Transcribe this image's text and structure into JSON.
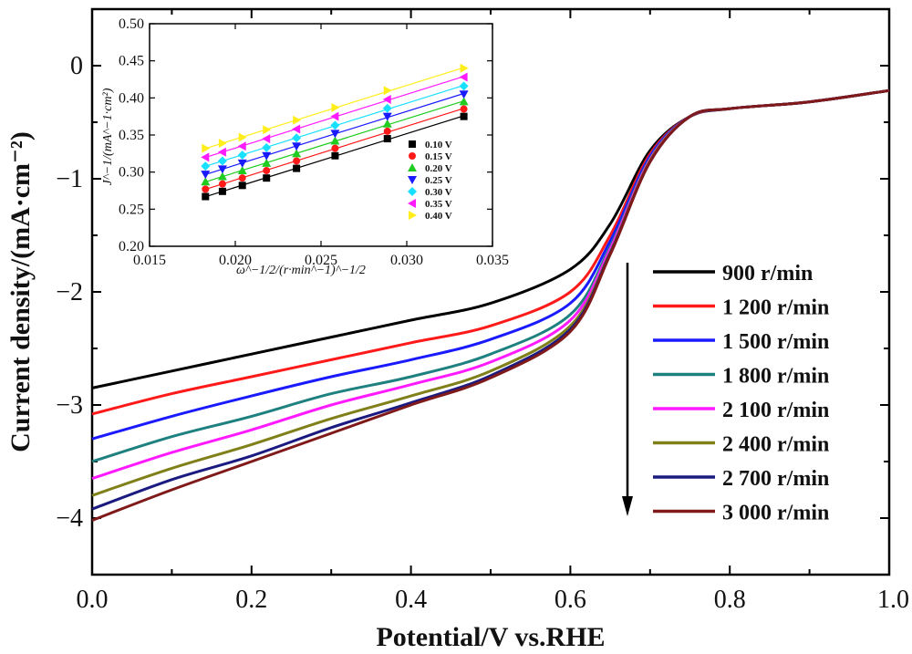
{
  "chart_data": [
    {
      "type": "line",
      "xlabel": "Potential/V vs.RHE",
      "ylabel": "Current density/(mA·cm⁻²)",
      "xlim": [
        0.0,
        1.0
      ],
      "ylim": [
        -4.5,
        0.5
      ],
      "x_ticks": [
        "0.0",
        "0.2",
        "0.4",
        "0.6",
        "0.8",
        "1.0"
      ],
      "y_ticks": [
        "0",
        "−1",
        "−2",
        "−3",
        "−4"
      ],
      "arrow": "rotation speed increasing downward",
      "legend_position": "right",
      "series": [
        {
          "name": "900 r/min",
          "color": "#000000",
          "x": [
            0.0,
            0.1,
            0.2,
            0.3,
            0.4,
            0.5,
            0.6,
            0.65,
            0.7,
            0.75,
            0.8,
            0.9,
            1.0
          ],
          "y": [
            -2.85,
            -2.7,
            -2.55,
            -2.4,
            -2.25,
            -2.1,
            -1.8,
            -1.4,
            -0.75,
            -0.45,
            -0.38,
            -0.32,
            -0.22
          ]
        },
        {
          "name": "1 200 r/min",
          "color": "#ff1a1a",
          "x": [
            0.0,
            0.1,
            0.2,
            0.3,
            0.4,
            0.5,
            0.6,
            0.65,
            0.7,
            0.75,
            0.8,
            0.9,
            1.0
          ],
          "y": [
            -3.08,
            -2.9,
            -2.75,
            -2.6,
            -2.45,
            -2.3,
            -2.0,
            -1.5,
            -0.78,
            -0.45,
            -0.38,
            -0.32,
            -0.22
          ]
        },
        {
          "name": "1 500 r/min",
          "color": "#1a1aff",
          "x": [
            0.0,
            0.1,
            0.2,
            0.3,
            0.4,
            0.5,
            0.6,
            0.65,
            0.7,
            0.75,
            0.8,
            0.9,
            1.0
          ],
          "y": [
            -3.3,
            -3.1,
            -2.92,
            -2.75,
            -2.6,
            -2.42,
            -2.1,
            -1.55,
            -0.8,
            -0.45,
            -0.38,
            -0.32,
            -0.22
          ]
        },
        {
          "name": "1 800 r/min",
          "color": "#1f8080",
          "x": [
            0.0,
            0.1,
            0.2,
            0.3,
            0.4,
            0.5,
            0.6,
            0.65,
            0.7,
            0.75,
            0.8,
            0.9,
            1.0
          ],
          "y": [
            -3.5,
            -3.28,
            -3.1,
            -2.9,
            -2.75,
            -2.55,
            -2.2,
            -1.6,
            -0.82,
            -0.45,
            -0.38,
            -0.32,
            -0.22
          ]
        },
        {
          "name": "2 100 r/min",
          "color": "#ff1aff",
          "x": [
            0.0,
            0.1,
            0.2,
            0.3,
            0.4,
            0.5,
            0.6,
            0.65,
            0.7,
            0.75,
            0.8,
            0.9,
            1.0
          ],
          "y": [
            -3.65,
            -3.42,
            -3.22,
            -3.0,
            -2.82,
            -2.62,
            -2.25,
            -1.62,
            -0.83,
            -0.45,
            -0.38,
            -0.32,
            -0.22
          ]
        },
        {
          "name": "2 400 r/min",
          "color": "#80801a",
          "x": [
            0.0,
            0.1,
            0.2,
            0.3,
            0.4,
            0.5,
            0.6,
            0.65,
            0.7,
            0.75,
            0.8,
            0.9,
            1.0
          ],
          "y": [
            -3.8,
            -3.56,
            -3.35,
            -3.12,
            -2.92,
            -2.7,
            -2.3,
            -1.65,
            -0.84,
            -0.45,
            -0.38,
            -0.32,
            -0.22
          ]
        },
        {
          "name": "2 700 r/min",
          "color": "#1a1a80",
          "x": [
            0.0,
            0.1,
            0.2,
            0.3,
            0.4,
            0.5,
            0.6,
            0.65,
            0.7,
            0.75,
            0.8,
            0.9,
            1.0
          ],
          "y": [
            -3.92,
            -3.66,
            -3.45,
            -3.2,
            -2.98,
            -2.74,
            -2.33,
            -1.66,
            -0.85,
            -0.45,
            -0.38,
            -0.32,
            -0.22
          ]
        },
        {
          "name": "3 000 r/min",
          "color": "#801a1a",
          "x": [
            0.0,
            0.1,
            0.2,
            0.3,
            0.4,
            0.5,
            0.6,
            0.65,
            0.7,
            0.75,
            0.8,
            0.9,
            1.0
          ],
          "y": [
            -4.02,
            -3.75,
            -3.5,
            -3.25,
            -3.0,
            -2.76,
            -2.35,
            -1.67,
            -0.85,
            -0.45,
            -0.38,
            -0.32,
            -0.22
          ]
        }
      ]
    },
    {
      "type": "scatter",
      "xlabel": "ω^−1/2/(r·min^−1)^−1/2",
      "ylabel": "J^−1/(mA^−1·cm²)",
      "xlim": [
        0.015,
        0.035
      ],
      "ylim": [
        0.2,
        0.5
      ],
      "x_ticks": [
        "0.015",
        "0.020",
        "0.025",
        "0.030",
        "0.035"
      ],
      "y_ticks": [
        "0.20",
        "0.25",
        "0.30",
        "0.35",
        "0.40",
        "0.45",
        "0.50"
      ],
      "legend_position": "lower-right",
      "x": [
        0.01826,
        0.01925,
        0.02041,
        0.02182,
        0.02357,
        0.02582,
        0.02887,
        0.03333
      ],
      "series": [
        {
          "name": "0.10 V",
          "color": "#000000",
          "marker": "square",
          "y": [
            0.267,
            0.274,
            0.282,
            0.292,
            0.305,
            0.322,
            0.345,
            0.375
          ]
        },
        {
          "name": "0.15 V",
          "color": "#ff1a1a",
          "marker": "circle",
          "y": [
            0.277,
            0.284,
            0.292,
            0.302,
            0.315,
            0.332,
            0.355,
            0.385
          ]
        },
        {
          "name": "0.20 V",
          "color": "#1fcc1f",
          "marker": "triangle-up",
          "y": [
            0.287,
            0.294,
            0.302,
            0.312,
            0.325,
            0.342,
            0.365,
            0.395
          ]
        },
        {
          "name": "0.25 V",
          "color": "#1a1aff",
          "marker": "triangle-down",
          "y": [
            0.297,
            0.304,
            0.312,
            0.322,
            0.335,
            0.352,
            0.375,
            0.405
          ]
        },
        {
          "name": "0.30 V",
          "color": "#1ae0ff",
          "marker": "diamond",
          "y": [
            0.308,
            0.315,
            0.323,
            0.333,
            0.346,
            0.363,
            0.386,
            0.416
          ]
        },
        {
          "name": "0.35 V",
          "color": "#ff1aff",
          "marker": "triangle-left",
          "y": [
            0.32,
            0.327,
            0.335,
            0.345,
            0.358,
            0.375,
            0.398,
            0.428
          ]
        },
        {
          "name": "0.40 V",
          "color": "#ffee1a",
          "marker": "triangle-right",
          "y": [
            0.332,
            0.339,
            0.347,
            0.357,
            0.37,
            0.387,
            0.41,
            0.44
          ]
        }
      ]
    }
  ]
}
